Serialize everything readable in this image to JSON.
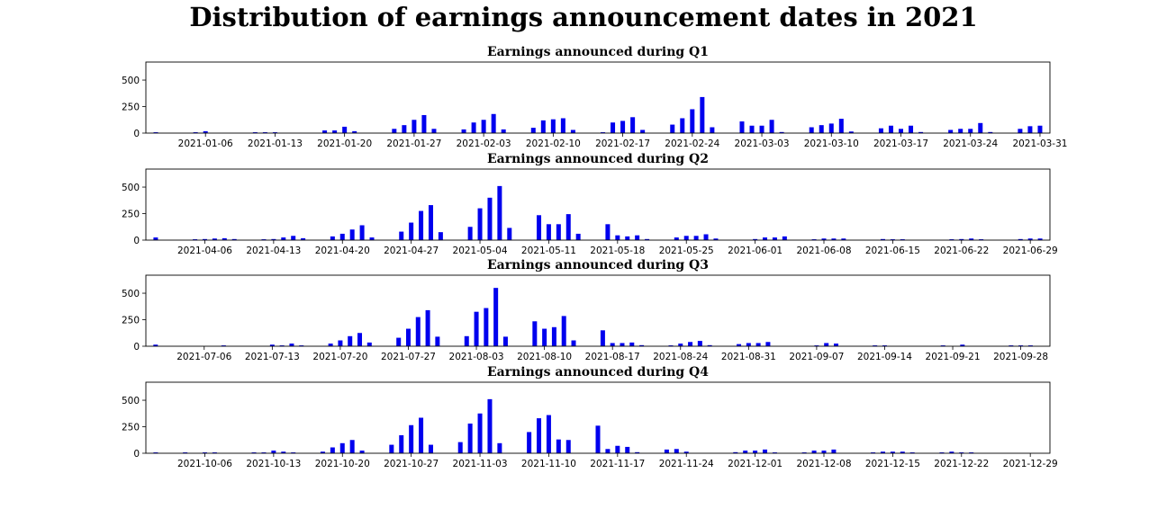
{
  "title": "Distribution of earnings announcement dates in 2021",
  "bar_color": "#0000ee",
  "chart_data": [
    {
      "type": "bar",
      "title": "Earnings announced during Q1",
      "xlabel": "",
      "ylabel": "",
      "ylim": [
        0,
        670
      ],
      "yticks": [
        0,
        250,
        500
      ],
      "xlim": [
        "2020-12-31",
        "2021-04-01"
      ],
      "xticks": [
        "2021-01-06",
        "2021-01-13",
        "2021-01-20",
        "2021-01-27",
        "2021-02-03",
        "2021-02-10",
        "2021-02-17",
        "2021-02-24",
        "2021-03-03",
        "2021-03-10",
        "2021-03-17",
        "2021-03-24",
        "2021-03-31"
      ],
      "dates": [
        "2021-01-01",
        "2021-01-05",
        "2021-01-06",
        "2021-01-11",
        "2021-01-12",
        "2021-01-13",
        "2021-01-18",
        "2021-01-19",
        "2021-01-20",
        "2021-01-21",
        "2021-01-25",
        "2021-01-26",
        "2021-01-27",
        "2021-01-28",
        "2021-01-29",
        "2021-02-01",
        "2021-02-02",
        "2021-02-03",
        "2021-02-04",
        "2021-02-05",
        "2021-02-08",
        "2021-02-09",
        "2021-02-10",
        "2021-02-11",
        "2021-02-12",
        "2021-02-15",
        "2021-02-16",
        "2021-02-17",
        "2021-02-18",
        "2021-02-19",
        "2021-02-22",
        "2021-02-23",
        "2021-02-24",
        "2021-02-25",
        "2021-02-26",
        "2021-03-01",
        "2021-03-02",
        "2021-03-03",
        "2021-03-04",
        "2021-03-05",
        "2021-03-08",
        "2021-03-09",
        "2021-03-10",
        "2021-03-11",
        "2021-03-12",
        "2021-03-15",
        "2021-03-16",
        "2021-03-17",
        "2021-03-18",
        "2021-03-19",
        "2021-03-22",
        "2021-03-23",
        "2021-03-24",
        "2021-03-25",
        "2021-03-26",
        "2021-03-29",
        "2021-03-30",
        "2021-03-31"
      ],
      "values": [
        8,
        8,
        18,
        8,
        8,
        8,
        25,
        25,
        60,
        18,
        40,
        75,
        125,
        170,
        40,
        35,
        100,
        125,
        180,
        35,
        50,
        120,
        130,
        140,
        30,
        8,
        100,
        115,
        150,
        30,
        80,
        140,
        225,
        340,
        55,
        110,
        70,
        70,
        125,
        10,
        55,
        75,
        90,
        135,
        15,
        45,
        70,
        40,
        70,
        10,
        30,
        40,
        40,
        95,
        10,
        40,
        65,
        70
      ]
    },
    {
      "type": "bar",
      "title": "Earnings announced during Q2",
      "xlabel": "",
      "ylabel": "",
      "ylim": [
        0,
        670
      ],
      "yticks": [
        0,
        250,
        500
      ],
      "xlim": [
        "2021-03-31",
        "2021-07-01"
      ],
      "xticks": [
        "2021-04-06",
        "2021-04-13",
        "2021-04-20",
        "2021-04-27",
        "2021-05-04",
        "2021-05-11",
        "2021-05-18",
        "2021-05-25",
        "2021-06-01",
        "2021-06-08",
        "2021-06-15",
        "2021-06-22",
        "2021-06-29"
      ],
      "dates": [
        "2021-04-01",
        "2021-04-05",
        "2021-04-06",
        "2021-04-07",
        "2021-04-08",
        "2021-04-09",
        "2021-04-12",
        "2021-04-13",
        "2021-04-14",
        "2021-04-15",
        "2021-04-16",
        "2021-04-19",
        "2021-04-20",
        "2021-04-21",
        "2021-04-22",
        "2021-04-23",
        "2021-04-26",
        "2021-04-27",
        "2021-04-28",
        "2021-04-29",
        "2021-04-30",
        "2021-05-03",
        "2021-05-04",
        "2021-05-05",
        "2021-05-06",
        "2021-05-07",
        "2021-05-10",
        "2021-05-11",
        "2021-05-12",
        "2021-05-13",
        "2021-05-14",
        "2021-05-17",
        "2021-05-18",
        "2021-05-19",
        "2021-05-20",
        "2021-05-21",
        "2021-05-24",
        "2021-05-25",
        "2021-05-26",
        "2021-05-27",
        "2021-05-28",
        "2021-06-01",
        "2021-06-02",
        "2021-06-03",
        "2021-06-04",
        "2021-06-07",
        "2021-06-08",
        "2021-06-09",
        "2021-06-10",
        "2021-06-14",
        "2021-06-15",
        "2021-06-16",
        "2021-06-21",
        "2021-06-22",
        "2021-06-23",
        "2021-06-24",
        "2021-06-28",
        "2021-06-29",
        "2021-06-30"
      ],
      "values": [
        25,
        8,
        10,
        15,
        18,
        10,
        8,
        10,
        25,
        40,
        18,
        35,
        60,
        100,
        140,
        25,
        80,
        165,
        275,
        330,
        75,
        125,
        300,
        400,
        510,
        115,
        235,
        150,
        150,
        245,
        60,
        150,
        45,
        35,
        45,
        10,
        25,
        40,
        40,
        55,
        15,
        10,
        25,
        25,
        35,
        8,
        15,
        15,
        15,
        10,
        8,
        8,
        8,
        10,
        15,
        8,
        10,
        15,
        15
      ]
    },
    {
      "type": "bar",
      "title": "Earnings announced during Q3",
      "xlabel": "",
      "ylabel": "",
      "ylim": [
        0,
        670
      ],
      "yticks": [
        0,
        250,
        500
      ],
      "xlim": [
        "2021-06-30",
        "2021-10-01"
      ],
      "xticks": [
        "2021-07-06",
        "2021-07-13",
        "2021-07-20",
        "2021-07-27",
        "2021-08-03",
        "2021-08-10",
        "2021-08-17",
        "2021-08-24",
        "2021-08-31",
        "2021-09-07",
        "2021-09-14",
        "2021-09-21",
        "2021-09-28"
      ],
      "dates": [
        "2021-07-01",
        "2021-07-08",
        "2021-07-13",
        "2021-07-14",
        "2021-07-15",
        "2021-07-16",
        "2021-07-19",
        "2021-07-20",
        "2021-07-21",
        "2021-07-22",
        "2021-07-23",
        "2021-07-26",
        "2021-07-27",
        "2021-07-28",
        "2021-07-29",
        "2021-07-30",
        "2021-08-02",
        "2021-08-03",
        "2021-08-04",
        "2021-08-05",
        "2021-08-06",
        "2021-08-09",
        "2021-08-10",
        "2021-08-11",
        "2021-08-12",
        "2021-08-13",
        "2021-08-16",
        "2021-08-17",
        "2021-08-18",
        "2021-08-19",
        "2021-08-20",
        "2021-08-23",
        "2021-08-24",
        "2021-08-25",
        "2021-08-26",
        "2021-08-27",
        "2021-08-30",
        "2021-08-31",
        "2021-09-01",
        "2021-09-02",
        "2021-09-07",
        "2021-09-08",
        "2021-09-09",
        "2021-09-13",
        "2021-09-14",
        "2021-09-20",
        "2021-09-22",
        "2021-09-27",
        "2021-09-28",
        "2021-09-29"
      ],
      "values": [
        15,
        8,
        15,
        8,
        25,
        8,
        25,
        55,
        95,
        125,
        35,
        80,
        165,
        275,
        340,
        90,
        95,
        325,
        360,
        550,
        90,
        235,
        165,
        180,
        285,
        55,
        150,
        30,
        30,
        35,
        10,
        8,
        25,
        40,
        50,
        10,
        20,
        30,
        30,
        40,
        8,
        30,
        25,
        8,
        8,
        8,
        15,
        8,
        8,
        8
      ]
    },
    {
      "type": "bar",
      "title": "Earnings announced during Q4",
      "xlabel": "",
      "ylabel": "",
      "ylim": [
        0,
        670
      ],
      "yticks": [
        0,
        250,
        500
      ],
      "xlim": [
        "2021-09-30",
        "2021-12-31"
      ],
      "xticks": [
        "2021-10-06",
        "2021-10-13",
        "2021-10-20",
        "2021-10-27",
        "2021-11-03",
        "2021-11-10",
        "2021-11-17",
        "2021-11-24",
        "2021-12-01",
        "2021-12-08",
        "2021-12-15",
        "2021-12-22",
        "2021-12-29"
      ],
      "dates": [
        "2021-10-01",
        "2021-10-04",
        "2021-10-06",
        "2021-10-07",
        "2021-10-11",
        "2021-10-12",
        "2021-10-13",
        "2021-10-14",
        "2021-10-15",
        "2021-10-18",
        "2021-10-19",
        "2021-10-20",
        "2021-10-21",
        "2021-10-22",
        "2021-10-25",
        "2021-10-26",
        "2021-10-27",
        "2021-10-28",
        "2021-10-29",
        "2021-11-01",
        "2021-11-02",
        "2021-11-03",
        "2021-11-04",
        "2021-11-05",
        "2021-11-08",
        "2021-11-09",
        "2021-11-10",
        "2021-11-11",
        "2021-11-12",
        "2021-11-15",
        "2021-11-16",
        "2021-11-17",
        "2021-11-18",
        "2021-11-19",
        "2021-11-22",
        "2021-11-23",
        "2021-11-24",
        "2021-11-29",
        "2021-11-30",
        "2021-12-01",
        "2021-12-02",
        "2021-12-03",
        "2021-12-06",
        "2021-12-07",
        "2021-12-08",
        "2021-12-09",
        "2021-12-13",
        "2021-12-14",
        "2021-12-15",
        "2021-12-16",
        "2021-12-17",
        "2021-12-20",
        "2021-12-21",
        "2021-12-22",
        "2021-12-23"
      ],
      "values": [
        8,
        8,
        8,
        8,
        8,
        8,
        25,
        15,
        8,
        15,
        55,
        95,
        125,
        25,
        80,
        170,
        265,
        335,
        80,
        105,
        280,
        375,
        510,
        95,
        200,
        330,
        360,
        130,
        125,
        260,
        40,
        70,
        60,
        10,
        35,
        40,
        15,
        10,
        25,
        25,
        35,
        8,
        8,
        25,
        25,
        35,
        8,
        15,
        15,
        15,
        8,
        8,
        15,
        8,
        8
      ]
    }
  ]
}
